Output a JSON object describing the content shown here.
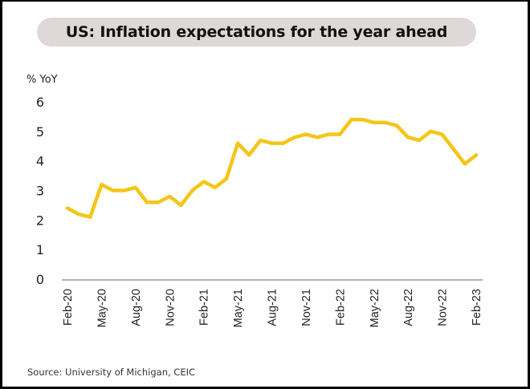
{
  "chart_data": {
    "type": "line",
    "title": "US: Inflation expectations for the year ahead",
    "ylabel": "% YoY",
    "xlabel": "",
    "source": "Source: University of Michigan, CEIC",
    "ylim": [
      0,
      6
    ],
    "yticks": [
      0,
      1,
      2,
      3,
      4,
      5,
      6
    ],
    "grid": false,
    "legend": "none",
    "line_color": "#f5c518",
    "axis_color": "#999999",
    "x": [
      "Feb-20",
      "Mar-20",
      "Apr-20",
      "May-20",
      "Jun-20",
      "Jul-20",
      "Aug-20",
      "Sep-20",
      "Oct-20",
      "Nov-20",
      "Dec-20",
      "Jan-21",
      "Feb-21",
      "Mar-21",
      "Apr-21",
      "May-21",
      "Jun-21",
      "Jul-21",
      "Aug-21",
      "Sep-21",
      "Oct-21",
      "Nov-21",
      "Dec-21",
      "Jan-22",
      "Feb-22",
      "Mar-22",
      "Apr-22",
      "May-22",
      "Jun-22",
      "Jul-22",
      "Aug-22",
      "Sep-22",
      "Oct-22",
      "Nov-22",
      "Dec-22",
      "Jan-23",
      "Feb-23"
    ],
    "xtick_labels": [
      "Feb-20",
      "May-20",
      "Aug-20",
      "Nov-20",
      "Feb-21",
      "May-21",
      "Aug-21",
      "Nov-21",
      "Feb-22",
      "May-22",
      "Aug-22",
      "Nov-22",
      "Feb-23"
    ],
    "series": [
      {
        "name": "Inflation expectations (year ahead)",
        "values": [
          2.4,
          2.2,
          2.1,
          3.2,
          3.0,
          3.0,
          3.1,
          2.6,
          2.6,
          2.8,
          2.5,
          3.0,
          3.3,
          3.1,
          3.4,
          4.6,
          4.2,
          4.7,
          4.6,
          4.6,
          4.8,
          4.9,
          4.8,
          4.9,
          4.9,
          5.4,
          5.4,
          5.3,
          5.3,
          5.2,
          4.8,
          4.7,
          5.0,
          4.9,
          4.4,
          3.9,
          4.2
        ]
      }
    ]
  }
}
